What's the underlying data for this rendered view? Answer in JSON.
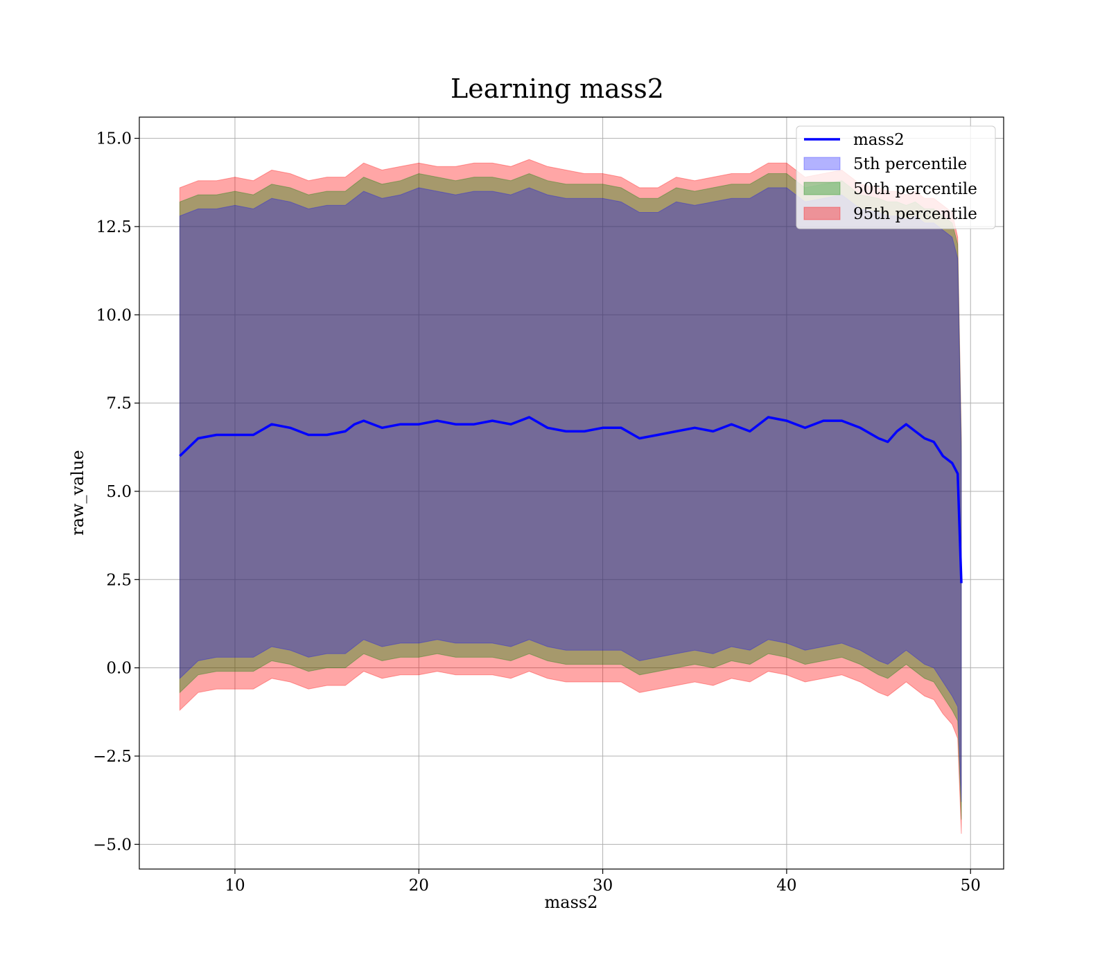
{
  "chart_data": {
    "type": "area",
    "title": "Learning mass2",
    "xlabel": "mass2",
    "ylabel": "raw_value",
    "xlim": [
      4.8,
      51.8
    ],
    "ylim": [
      -5.7,
      15.6
    ],
    "xticks": [
      10,
      20,
      30,
      40,
      50
    ],
    "yticks": [
      -5.0,
      -2.5,
      0.0,
      2.5,
      5.0,
      7.5,
      10.0,
      12.5,
      15.0
    ],
    "xtick_labels": [
      "10",
      "20",
      "30",
      "40",
      "50"
    ],
    "ytick_labels": [
      "−5.0",
      "−2.5",
      "0.0",
      "2.5",
      "5.0",
      "7.5",
      "10.0",
      "12.5",
      "15.0"
    ],
    "grid": true,
    "legend_position": "top-right",
    "legend": [
      "mass2",
      "5th percentile",
      "50th percentile",
      "95th percentile"
    ],
    "colors": {
      "line": "#0000ff",
      "band_5th": "#0000ff",
      "band_50th": "#008000",
      "band_95th": "#ff0000",
      "grid": "#b0b0b0"
    },
    "x": [
      7.0,
      8.0,
      9.0,
      10.0,
      11.0,
      12.0,
      13.0,
      14.0,
      15.0,
      16.0,
      16.5,
      17.0,
      18.0,
      19.0,
      20.0,
      21.0,
      22.0,
      23.0,
      24.0,
      25.0,
      26.0,
      27.0,
      28.0,
      29.0,
      30.0,
      31.0,
      32.0,
      33.0,
      34.0,
      35.0,
      36.0,
      37.0,
      38.0,
      39.0,
      40.0,
      41.0,
      42.0,
      43.0,
      44.0,
      45.0,
      45.5,
      46.0,
      46.5,
      47.0,
      47.5,
      48.0,
      48.5,
      49.0,
      49.3,
      49.5
    ],
    "series": [
      {
        "name": "mass2",
        "kind": "line",
        "values": [
          6.0,
          6.5,
          6.6,
          6.6,
          6.6,
          6.9,
          6.8,
          6.6,
          6.6,
          6.7,
          6.9,
          7.0,
          6.8,
          6.9,
          6.9,
          7.0,
          6.9,
          6.9,
          7.0,
          6.9,
          7.1,
          6.8,
          6.7,
          6.7,
          6.8,
          6.8,
          6.5,
          6.6,
          6.7,
          6.8,
          6.7,
          6.9,
          6.7,
          7.1,
          7.0,
          6.8,
          7.0,
          7.0,
          6.8,
          6.5,
          6.4,
          6.7,
          6.9,
          6.7,
          6.5,
          6.4,
          6.0,
          5.8,
          5.5,
          2.4
        ]
      },
      {
        "name": "5th percentile",
        "kind": "band",
        "upper": [
          12.8,
          13.0,
          13.0,
          13.1,
          13.0,
          13.3,
          13.2,
          13.0,
          13.1,
          13.1,
          13.3,
          13.5,
          13.3,
          13.4,
          13.6,
          13.5,
          13.4,
          13.5,
          13.5,
          13.4,
          13.6,
          13.4,
          13.3,
          13.3,
          13.3,
          13.2,
          12.9,
          12.9,
          13.2,
          13.1,
          13.2,
          13.3,
          13.3,
          13.6,
          13.6,
          13.2,
          13.3,
          13.4,
          13.0,
          12.9,
          12.8,
          12.8,
          12.7,
          12.8,
          12.6,
          12.6,
          12.4,
          12.2,
          11.6,
          6.0
        ],
        "lower": [
          -0.3,
          0.2,
          0.3,
          0.3,
          0.3,
          0.6,
          0.5,
          0.3,
          0.4,
          0.4,
          0.6,
          0.8,
          0.6,
          0.7,
          0.7,
          0.8,
          0.7,
          0.7,
          0.7,
          0.6,
          0.8,
          0.6,
          0.5,
          0.5,
          0.5,
          0.5,
          0.2,
          0.3,
          0.4,
          0.5,
          0.4,
          0.6,
          0.5,
          0.8,
          0.7,
          0.5,
          0.6,
          0.7,
          0.5,
          0.2,
          0.1,
          0.3,
          0.5,
          0.3,
          0.1,
          0.0,
          -0.4,
          -0.8,
          -1.1,
          -3.8
        ]
      },
      {
        "name": "50th percentile",
        "kind": "band",
        "upper": [
          13.2,
          13.4,
          13.4,
          13.5,
          13.4,
          13.7,
          13.6,
          13.4,
          13.5,
          13.5,
          13.7,
          13.9,
          13.7,
          13.8,
          14.0,
          13.9,
          13.8,
          13.9,
          13.9,
          13.8,
          14.0,
          13.8,
          13.7,
          13.7,
          13.7,
          13.6,
          13.3,
          13.3,
          13.6,
          13.5,
          13.6,
          13.7,
          13.7,
          14.0,
          14.0,
          13.6,
          13.7,
          13.8,
          13.4,
          13.3,
          13.2,
          13.2,
          13.1,
          13.2,
          13.0,
          13.0,
          12.8,
          12.6,
          12.0,
          6.3
        ],
        "lower": [
          -0.7,
          -0.2,
          -0.1,
          -0.1,
          -0.1,
          0.2,
          0.1,
          -0.1,
          0.0,
          0.0,
          0.2,
          0.4,
          0.2,
          0.3,
          0.3,
          0.4,
          0.3,
          0.3,
          0.3,
          0.2,
          0.4,
          0.2,
          0.1,
          0.1,
          0.1,
          0.1,
          -0.2,
          -0.1,
          0.0,
          0.1,
          0.0,
          0.2,
          0.1,
          0.4,
          0.3,
          0.1,
          0.2,
          0.3,
          0.1,
          -0.2,
          -0.3,
          -0.1,
          0.1,
          -0.1,
          -0.3,
          -0.4,
          -0.8,
          -1.2,
          -1.5,
          -4.3
        ]
      },
      {
        "name": "95th percentile",
        "kind": "band",
        "upper": [
          13.6,
          13.8,
          13.8,
          13.9,
          13.8,
          14.1,
          14.0,
          13.8,
          13.9,
          13.9,
          14.1,
          14.3,
          14.1,
          14.2,
          14.3,
          14.2,
          14.2,
          14.3,
          14.3,
          14.2,
          14.4,
          14.2,
          14.1,
          14.0,
          14.0,
          13.9,
          13.6,
          13.6,
          13.9,
          13.8,
          13.9,
          14.0,
          14.0,
          14.3,
          14.3,
          13.9,
          14.0,
          14.1,
          13.7,
          13.6,
          13.5,
          13.5,
          13.4,
          13.5,
          13.3,
          13.3,
          13.1,
          12.9,
          12.2,
          6.5
        ],
        "lower": [
          -1.2,
          -0.7,
          -0.6,
          -0.6,
          -0.6,
          -0.3,
          -0.4,
          -0.6,
          -0.5,
          -0.5,
          -0.3,
          -0.1,
          -0.3,
          -0.2,
          -0.2,
          -0.1,
          -0.2,
          -0.2,
          -0.2,
          -0.3,
          -0.1,
          -0.3,
          -0.4,
          -0.4,
          -0.4,
          -0.4,
          -0.7,
          -0.6,
          -0.5,
          -0.4,
          -0.5,
          -0.3,
          -0.4,
          -0.1,
          -0.2,
          -0.4,
          -0.3,
          -0.2,
          -0.4,
          -0.7,
          -0.8,
          -0.6,
          -0.4,
          -0.6,
          -0.8,
          -0.9,
          -1.3,
          -1.6,
          -2.0,
          -4.7
        ]
      }
    ]
  }
}
